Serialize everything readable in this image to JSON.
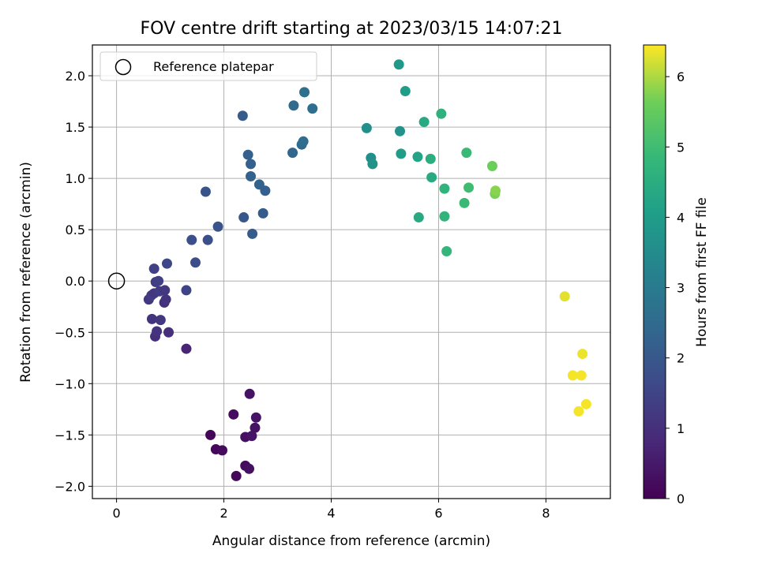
{
  "chart_data": {
    "type": "scatter",
    "title": "FOV centre drift starting at 2023/03/15 14:07:21",
    "xlabel": "Angular distance from reference (arcmin)",
    "ylabel": "Rotation from reference (arcmin)",
    "xlim": [
      -0.45,
      9.2
    ],
    "ylim": [
      -2.12,
      2.3
    ],
    "xticks": [
      0,
      2,
      4,
      6,
      8
    ],
    "yticks": [
      -2.0,
      -1.5,
      -1.0,
      -0.5,
      0.0,
      0.5,
      1.0,
      1.5,
      2.0
    ],
    "grid": true,
    "legend": {
      "position": "top-left",
      "entries": [
        "Reference platepar"
      ]
    },
    "reference_point": {
      "x": 0,
      "y": 0
    },
    "colorbar": {
      "label": "Hours from first FF file",
      "range": [
        0,
        6.45
      ],
      "ticks": [
        0,
        1,
        2,
        3,
        4,
        5,
        6
      ],
      "colormap": "viridis"
    },
    "points": [
      {
        "x": 1.75,
        "y": -1.5,
        "h": 0.1
      },
      {
        "x": 1.85,
        "y": -1.64,
        "h": 0.15
      },
      {
        "x": 1.97,
        "y": -1.65,
        "h": 0.2
      },
      {
        "x": 2.18,
        "y": -1.3,
        "h": 0.25
      },
      {
        "x": 2.23,
        "y": -1.9,
        "h": 0.1
      },
      {
        "x": 2.4,
        "y": -1.8,
        "h": 0.2
      },
      {
        "x": 2.4,
        "y": -1.52,
        "h": 0.3
      },
      {
        "x": 2.47,
        "y": -1.83,
        "h": 0.3
      },
      {
        "x": 2.48,
        "y": -1.1,
        "h": 0.35
      },
      {
        "x": 2.52,
        "y": -1.51,
        "h": 0.4
      },
      {
        "x": 2.58,
        "y": -1.43,
        "h": 0.35
      },
      {
        "x": 2.6,
        "y": -1.33,
        "h": 0.4
      },
      {
        "x": 1.3,
        "y": -0.66,
        "h": 0.75
      },
      {
        "x": 0.72,
        "y": -0.54,
        "h": 1.0
      },
      {
        "x": 0.75,
        "y": -0.49,
        "h": 1.1
      },
      {
        "x": 0.97,
        "y": -0.5,
        "h": 1.0
      },
      {
        "x": 0.66,
        "y": -0.37,
        "h": 1.1
      },
      {
        "x": 0.82,
        "y": -0.38,
        "h": 1.2
      },
      {
        "x": 0.6,
        "y": -0.18,
        "h": 1.2
      },
      {
        "x": 0.65,
        "y": -0.14,
        "h": 1.3
      },
      {
        "x": 0.7,
        "y": -0.12,
        "h": 1.2
      },
      {
        "x": 0.8,
        "y": -0.1,
        "h": 1.3
      },
      {
        "x": 0.73,
        "y": -0.01,
        "h": 1.3
      },
      {
        "x": 0.78,
        "y": 0.0,
        "h": 1.4
      },
      {
        "x": 0.9,
        "y": -0.09,
        "h": 1.2
      },
      {
        "x": 0.89,
        "y": -0.21,
        "h": 1.0
      },
      {
        "x": 0.92,
        "y": -0.18,
        "h": 1.1
      },
      {
        "x": 1.3,
        "y": -0.09,
        "h": 1.5
      },
      {
        "x": 0.7,
        "y": 0.12,
        "h": 1.4
      },
      {
        "x": 0.94,
        "y": 0.17,
        "h": 1.6
      },
      {
        "x": 1.47,
        "y": 0.18,
        "h": 1.7
      },
      {
        "x": 1.4,
        "y": 0.4,
        "h": 1.8
      },
      {
        "x": 1.7,
        "y": 0.4,
        "h": 1.8
      },
      {
        "x": 1.89,
        "y": 0.53,
        "h": 1.9
      },
      {
        "x": 1.66,
        "y": 0.87,
        "h": 1.9
      },
      {
        "x": 2.37,
        "y": 0.62,
        "h": 2.0
      },
      {
        "x": 2.53,
        "y": 0.46,
        "h": 2.1
      },
      {
        "x": 2.73,
        "y": 0.66,
        "h": 2.1
      },
      {
        "x": 2.35,
        "y": 1.61,
        "h": 2.1
      },
      {
        "x": 2.45,
        "y": 1.23,
        "h": 2.2
      },
      {
        "x": 2.5,
        "y": 1.14,
        "h": 2.2
      },
      {
        "x": 2.5,
        "y": 1.02,
        "h": 2.3
      },
      {
        "x": 2.66,
        "y": 0.94,
        "h": 2.3
      },
      {
        "x": 2.77,
        "y": 0.88,
        "h": 2.2
      },
      {
        "x": 3.28,
        "y": 1.25,
        "h": 2.4
      },
      {
        "x": 3.3,
        "y": 1.71,
        "h": 2.5
      },
      {
        "x": 3.45,
        "y": 1.33,
        "h": 2.5
      },
      {
        "x": 3.48,
        "y": 1.36,
        "h": 2.6
      },
      {
        "x": 3.5,
        "y": 1.84,
        "h": 2.7
      },
      {
        "x": 3.65,
        "y": 1.68,
        "h": 2.6
      },
      {
        "x": 4.66,
        "y": 1.49,
        "h": 3.6
      },
      {
        "x": 4.74,
        "y": 1.2,
        "h": 3.6
      },
      {
        "x": 4.77,
        "y": 1.14,
        "h": 3.7
      },
      {
        "x": 5.26,
        "y": 2.11,
        "h": 3.9
      },
      {
        "x": 5.28,
        "y": 1.46,
        "h": 3.7
      },
      {
        "x": 5.3,
        "y": 1.24,
        "h": 4.0
      },
      {
        "x": 5.38,
        "y": 1.85,
        "h": 4.0
      },
      {
        "x": 5.61,
        "y": 1.21,
        "h": 4.2
      },
      {
        "x": 5.63,
        "y": 0.62,
        "h": 4.4
      },
      {
        "x": 5.73,
        "y": 1.55,
        "h": 4.4
      },
      {
        "x": 5.85,
        "y": 1.19,
        "h": 4.5
      },
      {
        "x": 5.87,
        "y": 1.01,
        "h": 4.4
      },
      {
        "x": 6.05,
        "y": 1.63,
        "h": 4.6
      },
      {
        "x": 6.11,
        "y": 0.9,
        "h": 4.7
      },
      {
        "x": 6.11,
        "y": 0.63,
        "h": 4.7
      },
      {
        "x": 6.15,
        "y": 0.29,
        "h": 4.8
      },
      {
        "x": 6.48,
        "y": 0.76,
        "h": 4.9
      },
      {
        "x": 6.52,
        "y": 1.25,
        "h": 4.9
      },
      {
        "x": 6.56,
        "y": 0.91,
        "h": 5.0
      },
      {
        "x": 7.0,
        "y": 1.12,
        "h": 5.6
      },
      {
        "x": 7.05,
        "y": 0.85,
        "h": 5.7
      },
      {
        "x": 7.06,
        "y": 0.88,
        "h": 5.8
      },
      {
        "x": 8.35,
        "y": -0.15,
        "h": 6.3
      },
      {
        "x": 8.5,
        "y": -0.92,
        "h": 6.4
      },
      {
        "x": 8.61,
        "y": -1.27,
        "h": 6.4
      },
      {
        "x": 8.66,
        "y": -0.92,
        "h": 6.4
      },
      {
        "x": 8.68,
        "y": -0.71,
        "h": 6.35
      },
      {
        "x": 8.75,
        "y": -1.2,
        "h": 6.4
      }
    ]
  }
}
